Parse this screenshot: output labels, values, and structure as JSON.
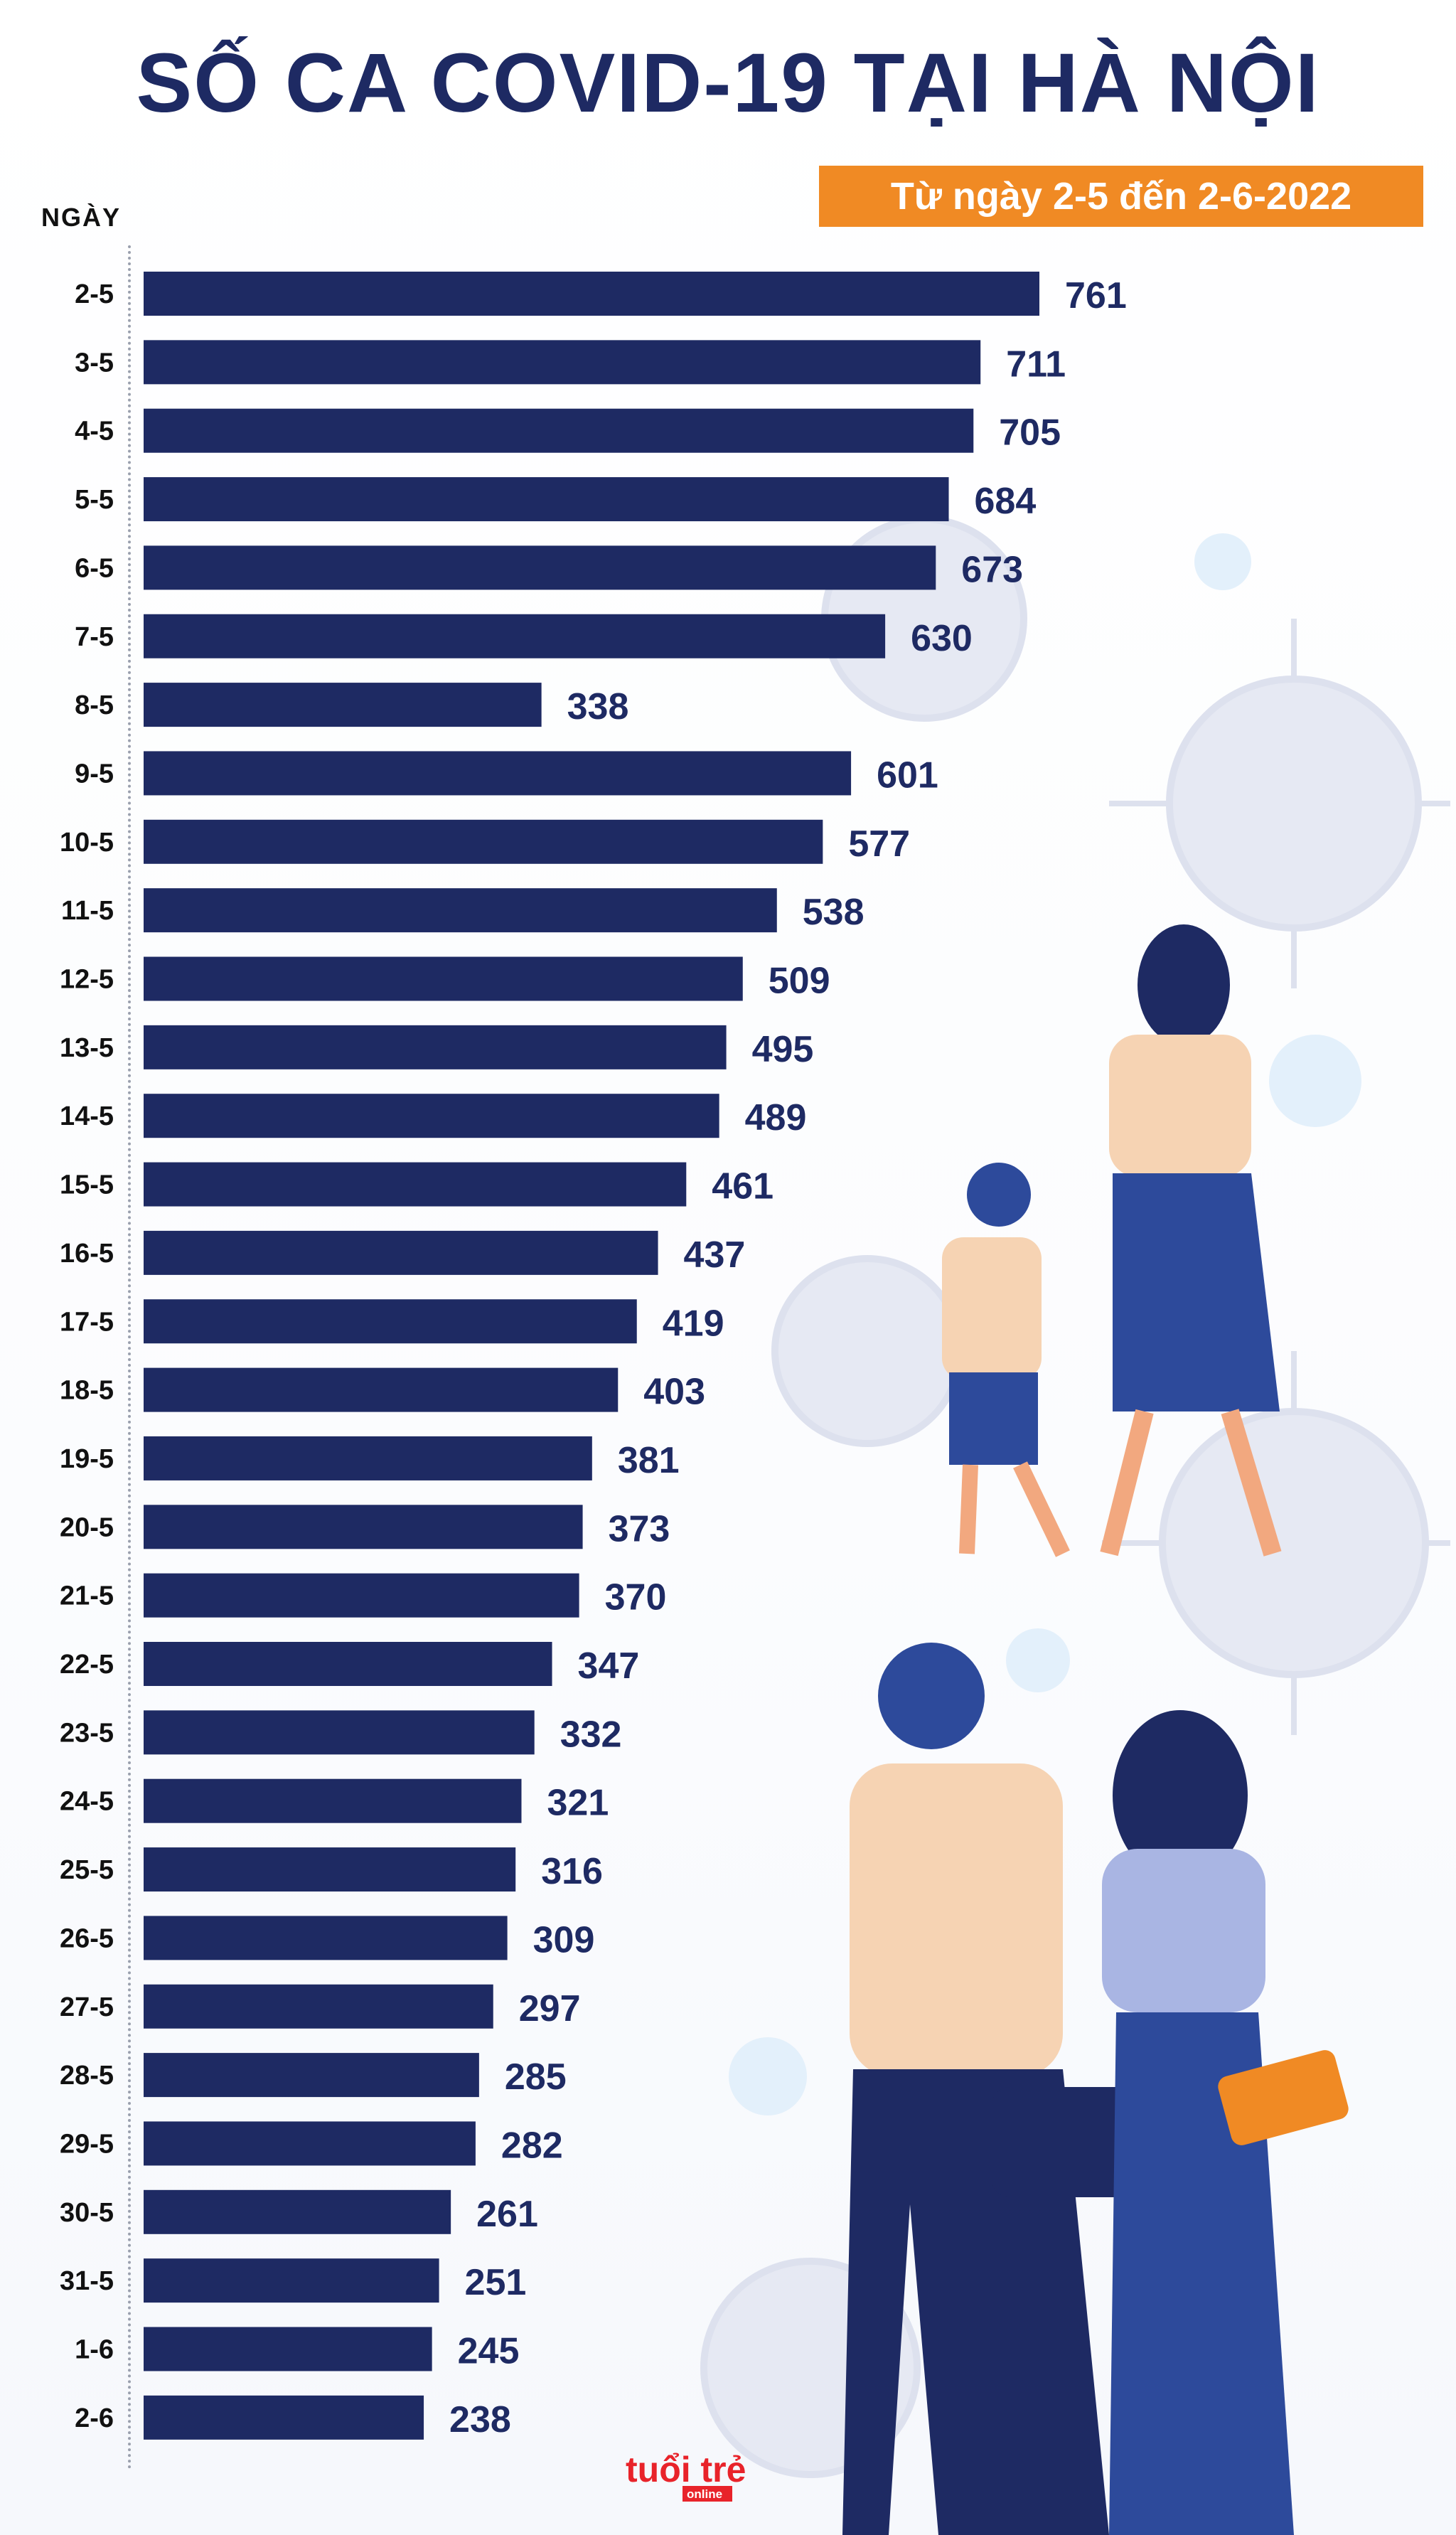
{
  "title": "SỐ CA COVID-19 TẠI HÀ NỘI",
  "subtitle": "Từ ngày 2-5 đến 2-6-2022",
  "logo_text": "tuổi trẻ online",
  "colors": {
    "bar": "#1e2a63",
    "accent": "#f08a24",
    "title": "#1e2a63"
  },
  "chart_data": {
    "type": "bar",
    "orientation": "horizontal",
    "title": "SỐ CA COVID-19 TẠI HÀ NỘI",
    "subtitle": "Từ ngày 2-5 đến 2-6-2022",
    "ylabel": "NGÀY",
    "xlabel": "",
    "grid": false,
    "categories": [
      "2-5",
      "3-5",
      "4-5",
      "5-5",
      "6-5",
      "7-5",
      "8-5",
      "9-5",
      "10-5",
      "11-5",
      "12-5",
      "13-5",
      "14-5",
      "15-5",
      "16-5",
      "17-5",
      "18-5",
      "19-5",
      "20-5",
      "21-5",
      "22-5",
      "23-5",
      "24-5",
      "25-5",
      "26-5",
      "27-5",
      "28-5",
      "29-5",
      "30-5",
      "31-5",
      "1-6",
      "2-6"
    ],
    "values": [
      761,
      711,
      705,
      684,
      673,
      630,
      338,
      601,
      577,
      538,
      509,
      495,
      489,
      461,
      437,
      419,
      403,
      381,
      373,
      370,
      347,
      332,
      321,
      316,
      309,
      297,
      285,
      282,
      261,
      251,
      245,
      238
    ],
    "xlim": [
      0,
      761
    ]
  }
}
